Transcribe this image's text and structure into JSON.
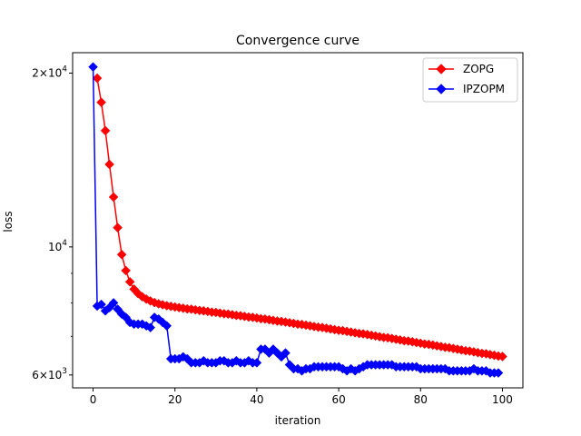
{
  "chart_data": {
    "type": "line",
    "title": "Convergence curve",
    "xlabel": "iteration",
    "ylabel": "loss",
    "yscale": "log",
    "xlim": [
      -5,
      105
    ],
    "ylim": [
      5700,
      21700
    ],
    "grid": false,
    "legend_position": "top-right",
    "x_ticks": [
      0,
      20,
      40,
      60,
      80,
      100
    ],
    "y_ticks": [
      {
        "value": 20000,
        "base": "2×10",
        "exp": "4"
      },
      {
        "value": 10000,
        "base": "10",
        "exp": "4"
      },
      {
        "value": 6000,
        "base": "6×10",
        "exp": "3"
      }
    ],
    "series": [
      {
        "name": "ZOPG",
        "color": "#ff0000",
        "marker": "diamond",
        "x_start": 1,
        "values": [
          19600,
          17800,
          15900,
          13900,
          12200,
          10800,
          9700,
          9100,
          8700,
          8450,
          8300,
          8200,
          8120,
          8060,
          8010,
          7970,
          7940,
          7910,
          7890,
          7870,
          7850,
          7830,
          7810,
          7800,
          7780,
          7760,
          7750,
          7730,
          7710,
          7700,
          7680,
          7660,
          7650,
          7630,
          7610,
          7600,
          7580,
          7560,
          7550,
          7530,
          7510,
          7500,
          7480,
          7460,
          7440,
          7430,
          7410,
          7390,
          7370,
          7350,
          7340,
          7320,
          7300,
          7280,
          7260,
          7250,
          7230,
          7210,
          7190,
          7170,
          7160,
          7140,
          7120,
          7100,
          7080,
          7070,
          7050,
          7030,
          7010,
          6990,
          6970,
          6960,
          6940,
          6920,
          6900,
          6880,
          6870,
          6850,
          6830,
          6810,
          6790,
          6780,
          6760,
          6740,
          6720,
          6700,
          6690,
          6670,
          6650,
          6630,
          6610,
          6600,
          6580,
          6560,
          6540,
          6530,
          6510,
          6490,
          6470,
          6460
        ]
      },
      {
        "name": "IPZOPM",
        "color": "#0000ff",
        "marker": "diamond",
        "x_start": 0,
        "values": [
          20500,
          7900,
          7950,
          7750,
          7850,
          8000,
          7800,
          7650,
          7550,
          7400,
          7350,
          7350,
          7350,
          7300,
          7250,
          7550,
          7500,
          7400,
          7300,
          6400,
          6400,
          6400,
          6450,
          6400,
          6300,
          6300,
          6300,
          6350,
          6300,
          6300,
          6300,
          6350,
          6350,
          6300,
          6300,
          6350,
          6300,
          6300,
          6350,
          6300,
          6300,
          6650,
          6650,
          6550,
          6650,
          6550,
          6450,
          6550,
          6250,
          6150,
          6150,
          6100,
          6150,
          6150,
          6200,
          6200,
          6200,
          6200,
          6200,
          6200,
          6200,
          6150,
          6100,
          6150,
          6100,
          6150,
          6200,
          6250,
          6250,
          6250,
          6250,
          6250,
          6250,
          6250,
          6200,
          6200,
          6200,
          6200,
          6200,
          6200,
          6150,
          6150,
          6150,
          6150,
          6150,
          6150,
          6150,
          6100,
          6100,
          6100,
          6100,
          6100,
          6100,
          6150,
          6100,
          6100,
          6100,
          6050,
          6050,
          6050
        ]
      }
    ]
  }
}
